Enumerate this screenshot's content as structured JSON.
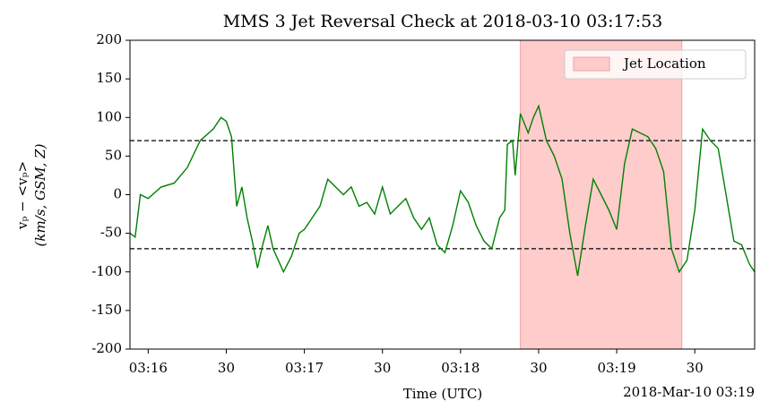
{
  "chart_data": {
    "type": "line",
    "title": "MMS 3 Jet Reversal Check at 2018-03-10 03:17:53",
    "x_label": "Time (UTC)",
    "x_offset_label": "2018-Mar-10 03:19",
    "y_label": [
      "vₚ − <vₚ>",
      "(km/s, GSM, Z)"
    ],
    "xlim": [
      "03:15:53",
      "03:19:53"
    ],
    "xticks": [
      {
        "value": "03:16:00",
        "label": "03:16"
      },
      {
        "value": "03:16:30",
        "label": "30"
      },
      {
        "value": "03:17:00",
        "label": "03:17"
      },
      {
        "value": "03:17:30",
        "label": "30"
      },
      {
        "value": "03:18:00",
        "label": "03:18"
      },
      {
        "value": "03:18:30",
        "label": "30"
      },
      {
        "value": "03:19:00",
        "label": "03:19"
      },
      {
        "value": "03:19:30",
        "label": "30"
      }
    ],
    "ylim": [
      -200,
      200
    ],
    "yticks": [
      -200,
      -150,
      -100,
      -50,
      0,
      50,
      100,
      150,
      200
    ],
    "hlines": [
      70,
      -70
    ],
    "span": {
      "name": "Jet Location",
      "start": "03:18:23",
      "end": "03:19:25",
      "color": "#ffcccc"
    },
    "legend": "upper right",
    "x": [
      "03:15:53",
      "03:15:55",
      "03:15:57",
      "03:16:00",
      "03:16:05",
      "03:16:10",
      "03:16:15",
      "03:16:20",
      "03:16:25",
      "03:16:28",
      "03:16:30",
      "03:16:32",
      "03:16:34",
      "03:16:36",
      "03:16:38",
      "03:16:40",
      "03:16:42",
      "03:16:44",
      "03:16:46",
      "03:16:48",
      "03:16:50",
      "03:16:52",
      "03:16:55",
      "03:16:58",
      "03:17:00",
      "03:17:03",
      "03:17:06",
      "03:17:09",
      "03:17:12",
      "03:17:15",
      "03:17:18",
      "03:17:21",
      "03:17:24",
      "03:17:27",
      "03:17:30",
      "03:17:33",
      "03:17:36",
      "03:17:39",
      "03:17:42",
      "03:17:45",
      "03:17:48",
      "03:17:51",
      "03:17:54",
      "03:17:57",
      "03:18:00",
      "03:18:03",
      "03:18:06",
      "03:18:09",
      "03:18:12",
      "03:18:15",
      "03:18:17",
      "03:18:18",
      "03:18:20",
      "03:18:21",
      "03:18:23",
      "03:18:26",
      "03:18:28",
      "03:18:30",
      "03:18:33",
      "03:18:36",
      "03:18:39",
      "03:18:42",
      "03:18:45",
      "03:18:48",
      "03:18:51",
      "03:18:54",
      "03:18:57",
      "03:19:00",
      "03:19:03",
      "03:19:06",
      "03:19:09",
      "03:19:12",
      "03:19:15",
      "03:19:18",
      "03:19:21",
      "03:19:24",
      "03:19:27",
      "03:19:30",
      "03:19:33",
      "03:19:36",
      "03:19:39",
      "03:19:42",
      "03:19:45",
      "03:19:48",
      "03:19:51",
      "03:19:53"
    ],
    "series": [
      {
        "color": "#008000",
        "values": [
          -50,
          -55,
          0,
          -5,
          10,
          15,
          35,
          70,
          85,
          100,
          95,
          75,
          -15,
          10,
          -30,
          -60,
          -95,
          -65,
          -40,
          -70,
          -85,
          -100,
          -80,
          -50,
          -45,
          -30,
          -15,
          20,
          10,
          0,
          10,
          -15,
          -10,
          -25,
          10,
          -25,
          -15,
          -5,
          -30,
          -45,
          -30,
          -65,
          -75,
          -40,
          5,
          -10,
          -40,
          -60,
          -70,
          -30,
          -20,
          65,
          70,
          25,
          105,
          80,
          100,
          115,
          70,
          50,
          20,
          -50,
          -105,
          -40,
          20,
          0,
          -20,
          -45,
          40,
          85,
          80,
          75,
          60,
          30,
          -70,
          -100,
          -85,
          -20,
          85,
          70,
          60,
          0,
          -60,
          -65,
          -90,
          -100
        ]
      }
    ]
  }
}
